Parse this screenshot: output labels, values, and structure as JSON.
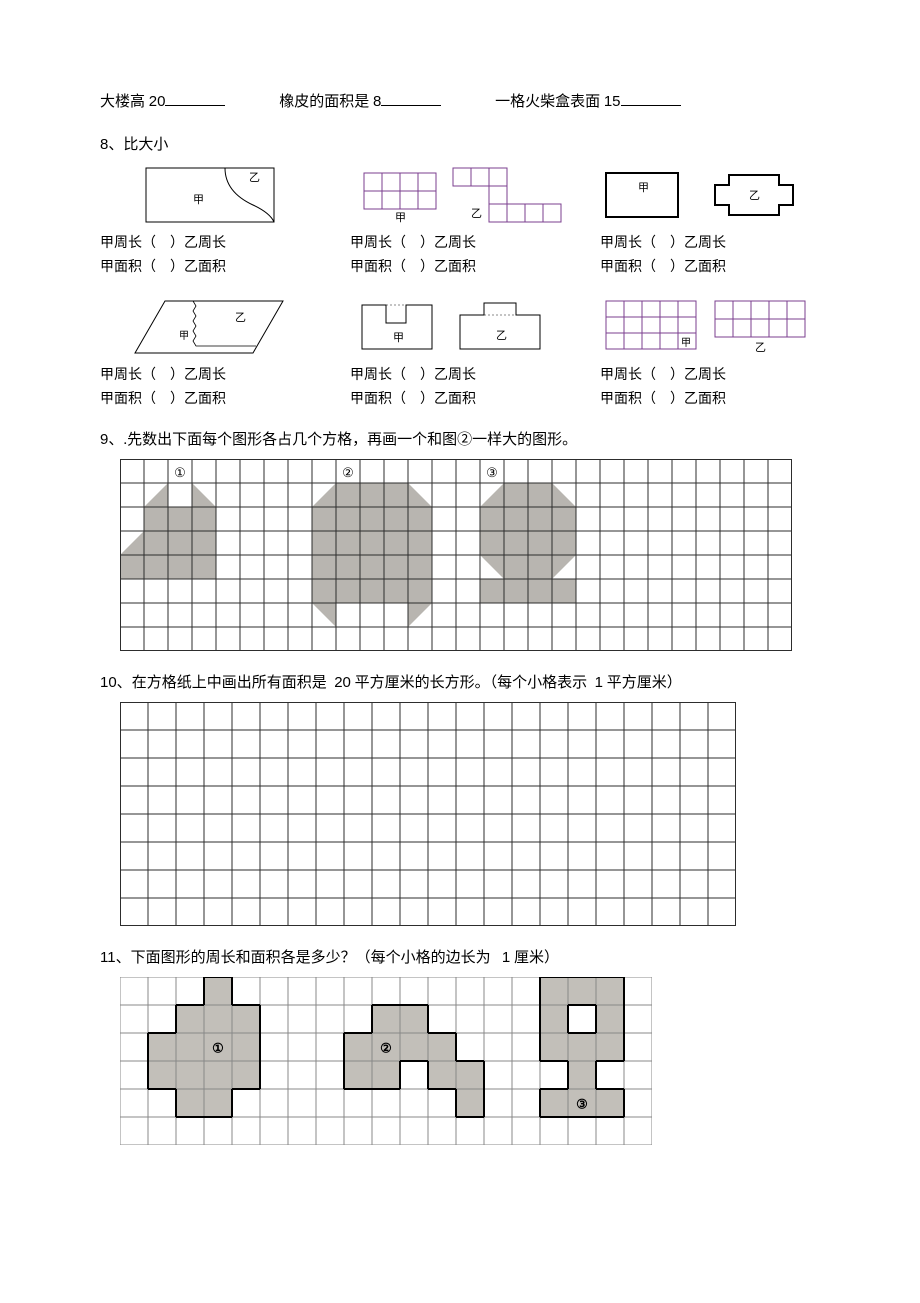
{
  "fill": {
    "a_label": "大楼高",
    "a_value": "20",
    "b_label": "橡皮的面积是",
    "b_value": "8",
    "c_label": "一格火柴盒表面",
    "c_value": "15"
  },
  "q8": {
    "num": "8、",
    "title": "比大小",
    "labels": {
      "jia_perim": "甲周长（",
      "yi_perim": "）乙周长",
      "jia_area": "甲面积（",
      "yi_area": "）乙面积"
    },
    "glyphs": {
      "jia": "甲",
      "yi": "乙"
    },
    "colors": {
      "black": "#000000",
      "purple": "#7b3f8f",
      "gridline": "#2d2d2d",
      "fillgrey": "#b8b5b0"
    }
  },
  "q9": {
    "num": "9、",
    "text": ".先数出下面每个图形各占几个方格，再画一个和图②一样大的图形。",
    "circled": {
      "one": "①",
      "two": "②",
      "three": "③"
    },
    "grid": {
      "cols": 28,
      "rows": 8,
      "cell": 24,
      "stroke": "#2d2d2d",
      "fill": "#b8b5b0"
    }
  },
  "q10": {
    "num": "10、",
    "text_a": "在方格纸上中画出所有面积是",
    "value": "20",
    "text_b": "平方厘米的长方形。（每个小格表示",
    "unit_value": "1",
    "text_c": "平方厘米）",
    "grid": {
      "cols": 22,
      "rows": 8,
      "cell": 28,
      "stroke": "#2d2d2d"
    }
  },
  "q11": {
    "num": "11、",
    "text_a": "下面图形的周长和面积各是多少？（每个小格的边长为",
    "value": "1",
    "text_b": "厘米）",
    "circled": {
      "one": "①",
      "two": "②",
      "three": "③"
    },
    "grid": {
      "cols": 19,
      "rows": 6,
      "cell": 28,
      "stroke": "#888",
      "fill": "#c2bfb9",
      "bold": "#000"
    }
  }
}
